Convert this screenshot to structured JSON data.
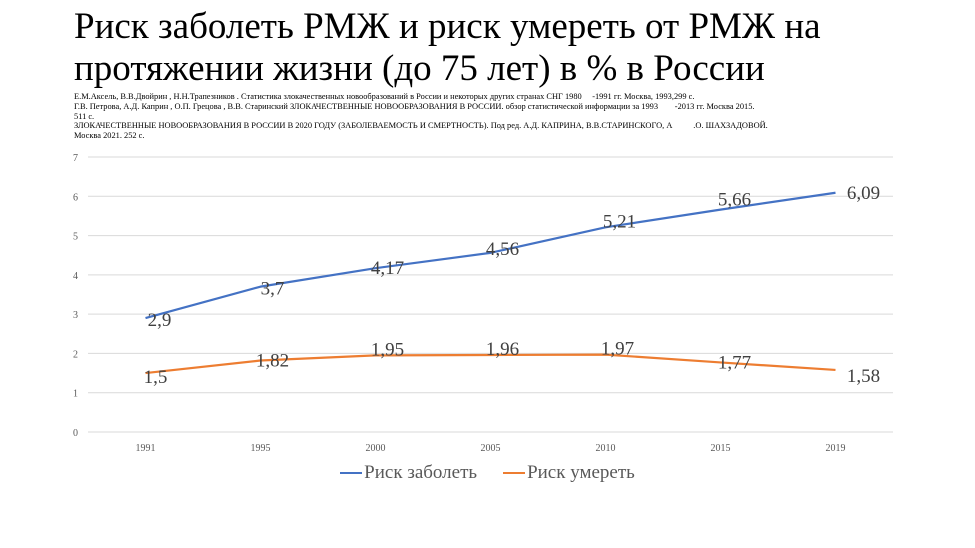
{
  "slide": {
    "title_line1": "Риск заболеть РМЖ и риск умереть от РМЖ на",
    "title_line2": "протяжении жизни (до 75 лет) в % в России",
    "references": [
      "Е.М.Аксель, В.В.Двойрин , Н.Н.Трапезников . Статистика злокачественных новообразований в России и некоторых других странах СНГ 1980     -1991 гг. Москва, 1993,299 с.",
      "Г.В. Петрова, А.Д. Каприн , О.П. Грецова , В.В. Старинский ЗЛОКАЧЕСТВЕННЫЕ НОВООБРАЗОВАНИЯ В РОССИИ. обзор статистической информации за 1993        -2013 гг. Москва 2015.",
      "511 с.",
      "ЗЛОКАЧЕСТВЕННЫЕ НОВООБРАЗОВАНИЯ В РОССИИ В 2020 ГОДУ (ЗАБОЛЕВАЕМОСТЬ И СМЕРТНОСТЬ). Под ред. А.Д. КАПРИНА, В.В.СТАРИНСКОГО, А          .О. ШАХЗАДОВОЙ.",
      "Москва 2021. 252 с."
    ]
  },
  "chart_data": {
    "type": "line",
    "title": "Риск заболеть РМЖ и риск умереть от РМЖ на протяжении жизни (до 75 лет) в % в России",
    "xlabel": "",
    "ylabel": "",
    "categories": [
      "1991",
      "1995",
      "2000",
      "2005",
      "2010",
      "2015",
      "2019"
    ],
    "series": [
      {
        "name": "Риск заболеть",
        "color": "#4472C4",
        "values": [
          2.9,
          3.7,
          4.17,
          4.56,
          5.21,
          5.66,
          6.09
        ],
        "labels": [
          "2,9",
          "3,7",
          "4,17",
          "4,56",
          "5,21",
          "5,66",
          "6,09"
        ]
      },
      {
        "name": "Риск умереть",
        "color": "#ED7D31",
        "values": [
          1.5,
          1.82,
          1.95,
          1.96,
          1.97,
          1.77,
          1.58
        ],
        "labels": [
          "1,5",
          "1,82",
          "1,95",
          "1,96",
          "1,97",
          "1,77",
          "1,58"
        ]
      }
    ],
    "ylim": [
      0,
      7
    ],
    "yticks": [
      "0",
      "1",
      "2",
      "3",
      "4",
      "5",
      "6",
      "7"
    ],
    "grid": true,
    "legend_position": "bottom"
  }
}
